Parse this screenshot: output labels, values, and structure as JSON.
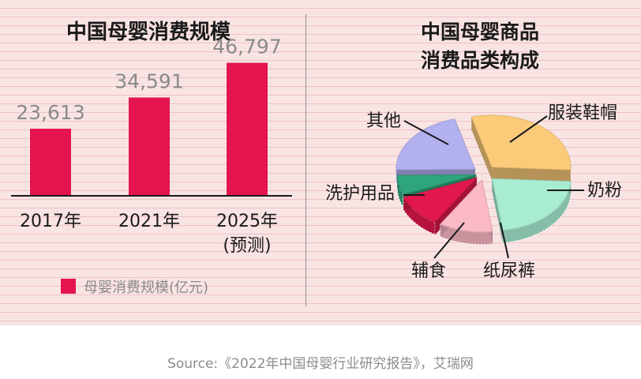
{
  "source": "Source:《2022年中国母婴行业研究报告》，艾瑞网",
  "colors": {
    "bar": "#e4144f",
    "text": "#1a1a1a",
    "value_label": "#8a8a8a",
    "axis": "#1a1a1a"
  },
  "chart_data": [
    {
      "type": "bar",
      "title": "中国母婴消费规模",
      "categories": [
        "2017年",
        "2021年",
        "2025年"
      ],
      "category_notes": [
        "",
        "",
        "(预测)"
      ],
      "values": [
        23613,
        34591,
        46797
      ],
      "value_labels": [
        "23,613",
        "34,591",
        "46,797"
      ],
      "legend": "母婴消费规模(亿元)",
      "ylim": [
        0,
        60000
      ],
      "grid": false
    },
    {
      "type": "pie",
      "style": "3d-exploded",
      "title": [
        "中国母婴商品",
        "消费品类构成"
      ],
      "slices": [
        {
          "label": "服装鞋帽",
          "value": 30,
          "color": "#fbcb7a"
        },
        {
          "label": "奶粉",
          "value": 22,
          "color": "#a8ecd2"
        },
        {
          "label": "纸尿裤",
          "value": 11,
          "color": "#fbb8c6"
        },
        {
          "label": "辅食",
          "value": 10,
          "color": "#e2184c"
        },
        {
          "label": "洗护用品",
          "value": 6,
          "color": "#2fa57b"
        },
        {
          "label": "其他",
          "value": 21,
          "color": "#b3b0f0"
        }
      ]
    }
  ]
}
